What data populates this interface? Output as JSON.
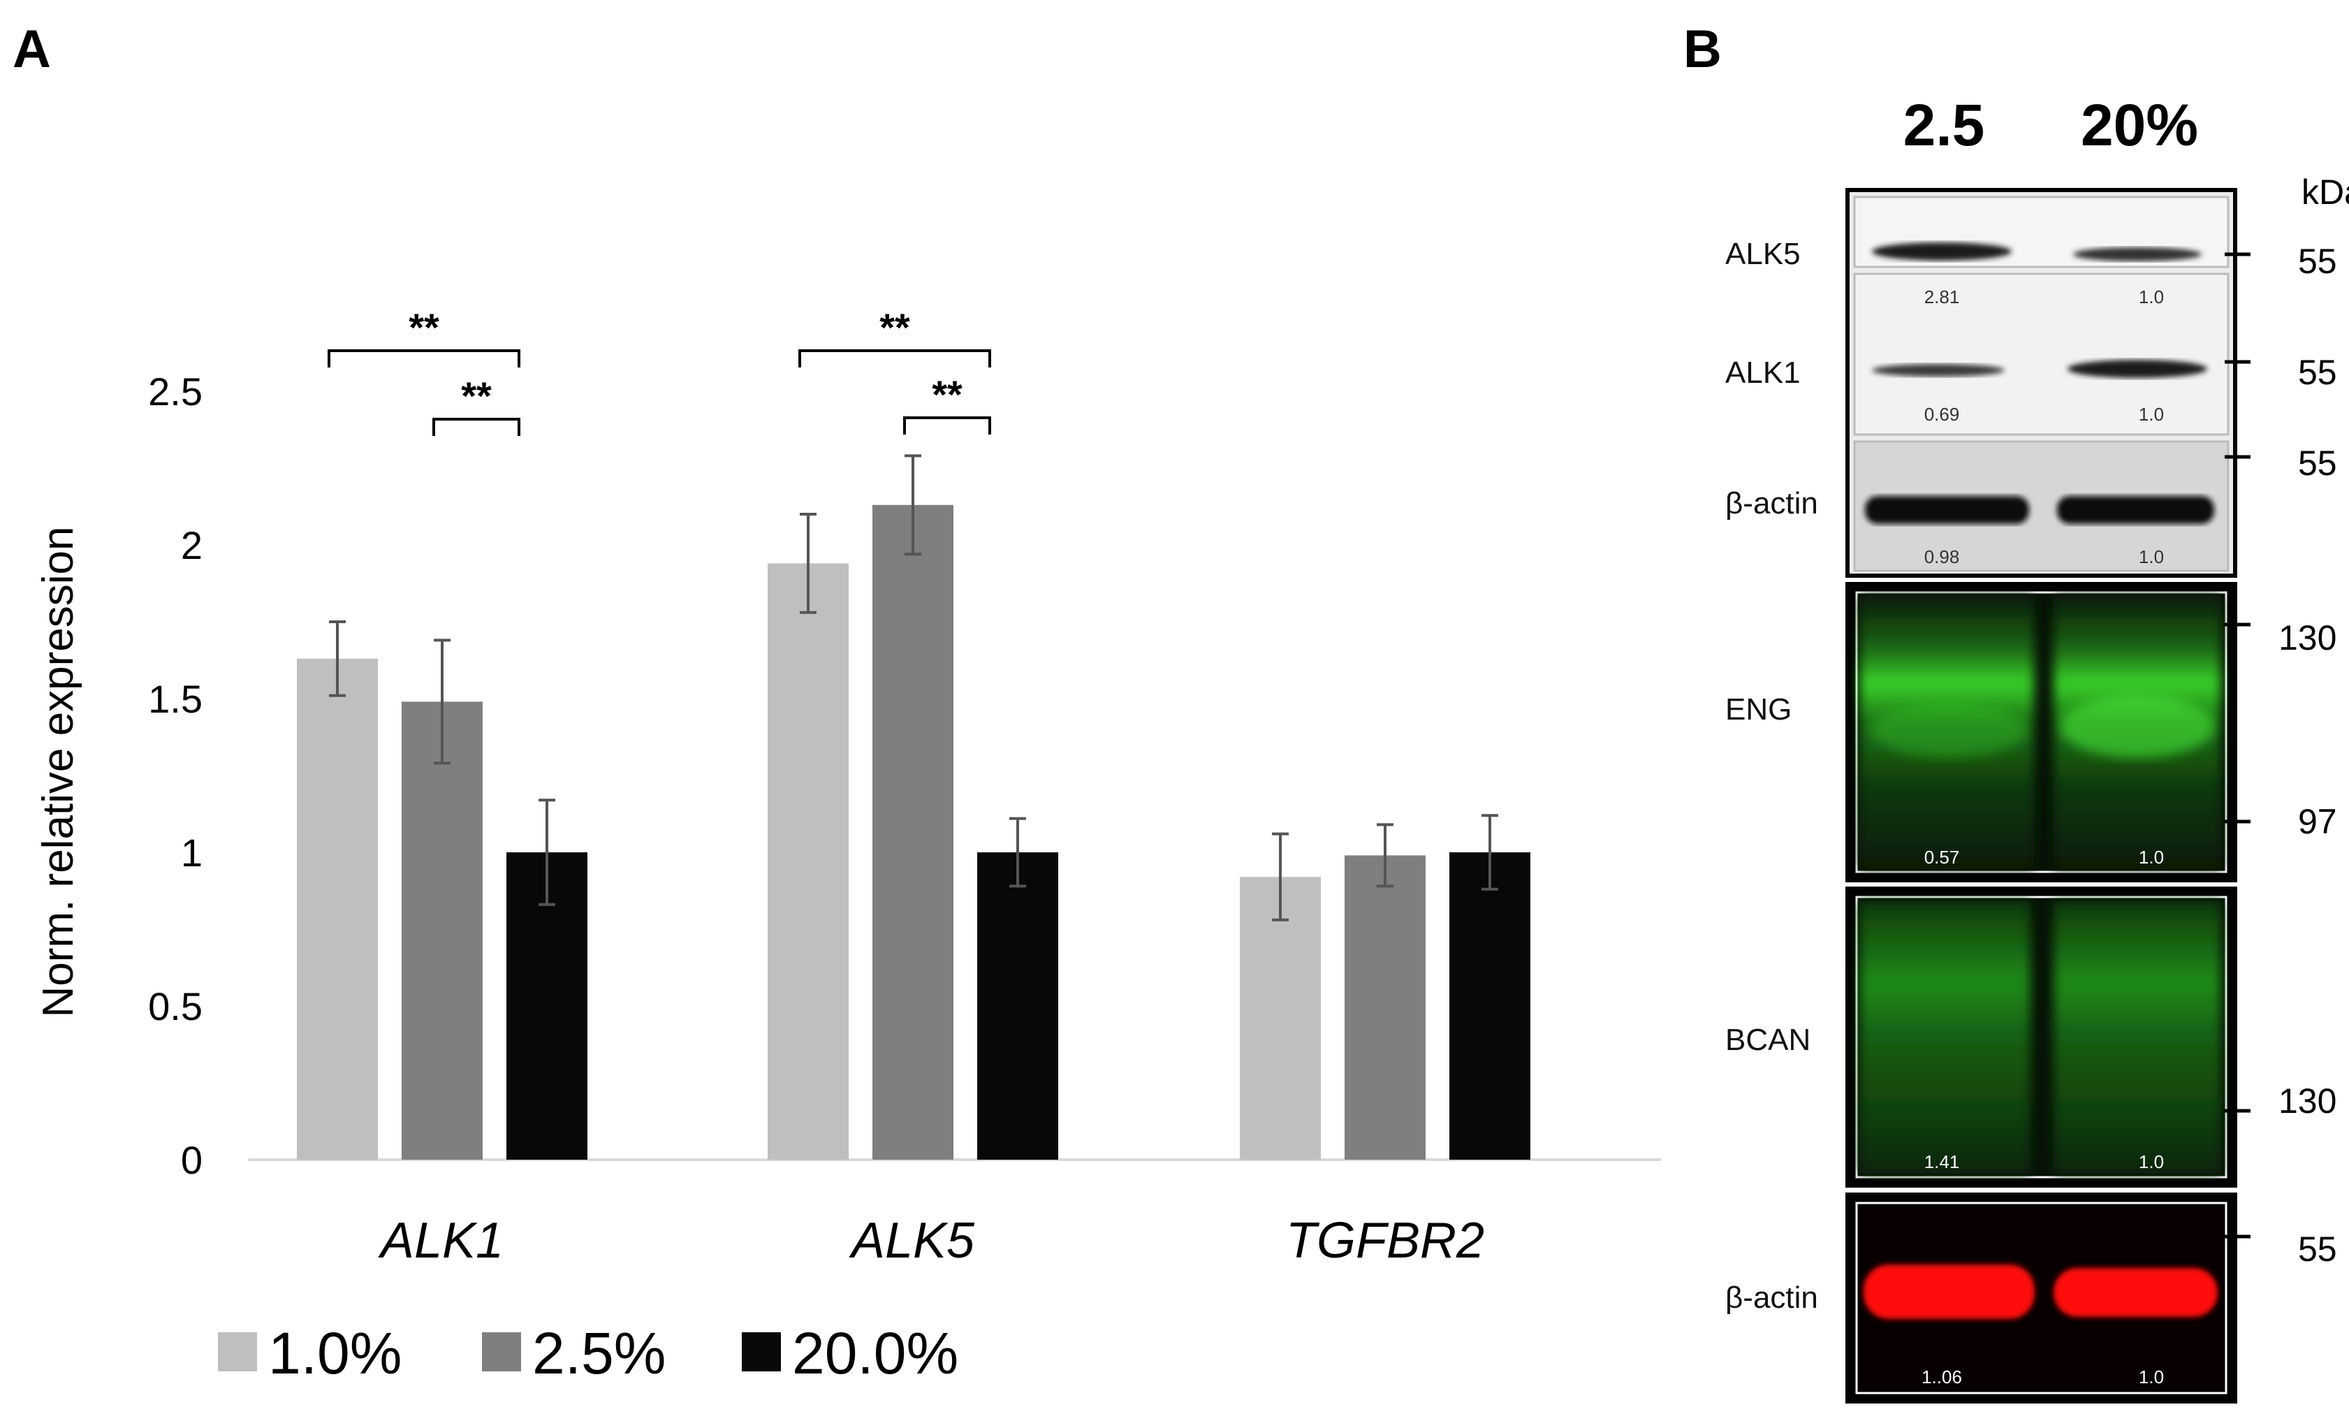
{
  "panel_a_label": "A",
  "panel_b_label": "B",
  "chart_data": {
    "type": "bar",
    "title": "",
    "xlabel": "",
    "ylabel": "Norm. relative expression",
    "ylim": [
      0,
      2.5
    ],
    "yticks": [
      "0",
      "0.5",
      "1",
      "1.5",
      "2",
      "2.5"
    ],
    "categories": [
      "ALK1",
      "ALK5",
      "TGFBR2"
    ],
    "series": [
      {
        "name": "1.0%",
        "color": "#bfbfbf",
        "values": [
          1.63,
          1.94,
          0.92
        ],
        "errors": [
          0.12,
          0.16,
          0.14
        ]
      },
      {
        "name": "2.5%",
        "color": "#7f7f7f",
        "values": [
          1.49,
          2.13,
          0.99
        ],
        "errors": [
          0.2,
          0.16,
          0.1
        ]
      },
      {
        "name": "20.0%",
        "color": "#080808",
        "values": [
          1.0,
          1.0,
          1.0
        ],
        "errors": [
          0.17,
          0.11,
          0.12
        ]
      }
    ],
    "significance": [
      {
        "category": "ALK1",
        "from": "1.0%",
        "to": "20.0%",
        "label": "**"
      },
      {
        "category": "ALK1",
        "from": "2.5%",
        "to": "20.0%",
        "label": "**"
      },
      {
        "category": "ALK5",
        "from": "1.0%",
        "to": "20.0%",
        "label": "**"
      },
      {
        "category": "ALK5",
        "from": "2.5%",
        "to": "20.0%",
        "label": "**"
      }
    ],
    "legend_position": "bottom"
  },
  "blot": {
    "columns": [
      "2.5",
      "20%"
    ],
    "kda_unit": "kDa",
    "rows": [
      {
        "label": "ALK5",
        "quant": [
          "2.81",
          "1.0"
        ]
      },
      {
        "label": "ALK1",
        "quant": [
          "0.69",
          "1.0"
        ]
      },
      {
        "label": "β-actin",
        "quant": [
          "0.98",
          "1.0"
        ]
      },
      {
        "label": "ENG",
        "quant": [
          "0.57",
          "1.0"
        ]
      },
      {
        "label": "BCAN",
        "quant": [
          "1.41",
          "1.0"
        ]
      },
      {
        "label": "β-actin",
        "quant": [
          "1..06",
          "1.0"
        ]
      }
    ],
    "markers": [
      "55",
      "55",
      "55",
      "130",
      "97",
      "130",
      "55"
    ]
  }
}
